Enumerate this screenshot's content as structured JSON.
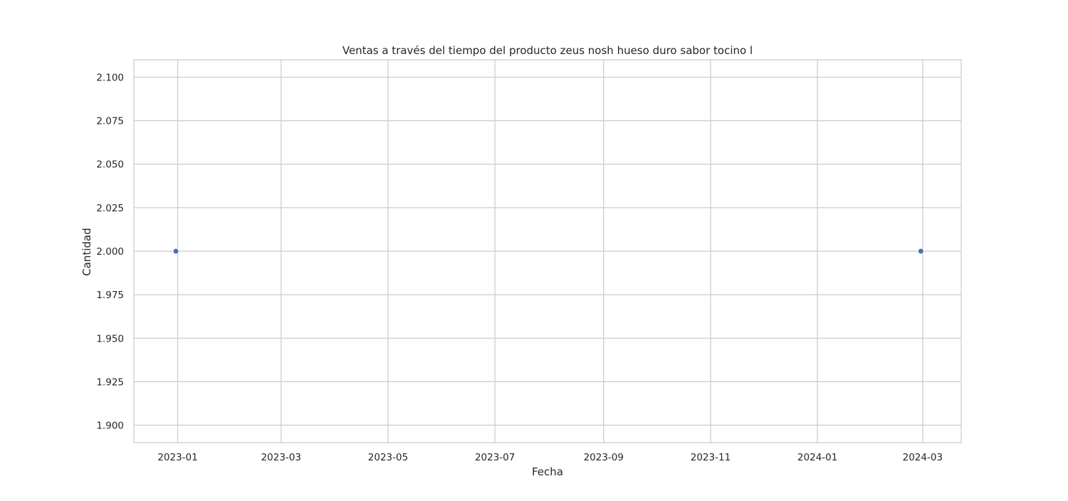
{
  "chart_data": {
    "type": "scatter",
    "title": "Ventas a través del tiempo del producto zeus nosh hueso duro sabor tocino l",
    "xlabel": "Fecha",
    "ylabel": "Cantidad",
    "x_axis_type": "date",
    "xlim": [
      "2022-12-07",
      "2024-03-23"
    ],
    "ylim": [
      1.89,
      2.11
    ],
    "x_ticks": [
      "2023-01",
      "2023-03",
      "2023-05",
      "2023-07",
      "2023-09",
      "2023-11",
      "2024-01",
      "2024-03"
    ],
    "y_ticks": [
      "1.900",
      "1.925",
      "1.950",
      "1.975",
      "2.000",
      "2.025",
      "2.050",
      "2.075",
      "2.100"
    ],
    "grid": true,
    "series": [
      {
        "color": "#4c72b0",
        "points": [
          {
            "x": "2022-12-31",
            "y": 2.0
          },
          {
            "x": "2024-02-29",
            "y": 2.0
          }
        ]
      }
    ]
  }
}
